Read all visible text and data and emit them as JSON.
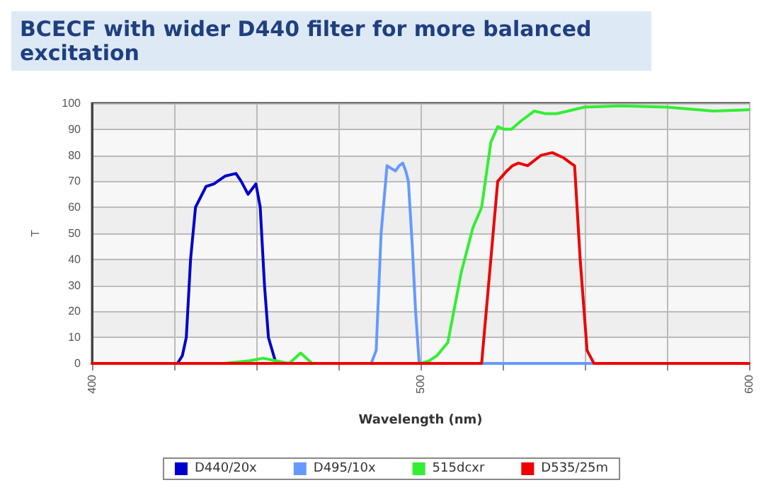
{
  "chart_data": {
    "type": "line",
    "title": "BCECF with wider D440 filter for more balanced excitation",
    "xlabel": "Wavelength (nm)",
    "ylabel": "T",
    "xlim": [
      400,
      600
    ],
    "ylim": [
      0,
      100
    ],
    "xticks": [
      400,
      {
        "value": 425,
        "label": null
      },
      {
        "value": 450,
        "label": null
      },
      {
        "value": 475,
        "label": null
      },
      500,
      {
        "value": 525,
        "label": null
      },
      {
        "value": 550,
        "label": null
      },
      {
        "value": 575,
        "label": null
      },
      600
    ],
    "yticks": [
      0,
      10,
      20,
      30,
      40,
      50,
      60,
      70,
      80,
      90,
      100
    ],
    "grid": true,
    "legend": "bottom",
    "marker": "none",
    "line_style": "solid",
    "series": [
      {
        "name": "D440/20x",
        "color": "#0000cc",
        "x": [
          426,
          427.5,
          428.7,
          430,
          431.5,
          434.7,
          437.1,
          440.5,
          443.8,
          445.4,
          447.5,
          449.9,
          451.2,
          452.5,
          453.7,
          456
        ],
        "values": [
          0,
          3,
          10,
          40,
          60,
          68,
          69,
          72,
          73,
          70,
          65,
          69,
          60,
          30,
          10,
          0
        ]
      },
      {
        "name": "D495/10x",
        "color": "#6699ff",
        "x": [
          400,
          485,
          486.5,
          488,
          489.8,
          491,
          492.4,
          493.5,
          494.6,
          495.5,
          496.3,
          497.5,
          498.5,
          499.6,
          600
        ],
        "values": [
          0,
          0,
          5,
          50,
          76,
          75,
          74,
          76,
          77,
          74,
          70,
          45,
          20,
          0,
          0
        ]
      },
      {
        "name": "515dcxr",
        "color": "#33ee33",
        "x": [
          400,
          440,
          448,
          452,
          456,
          460,
          463.5,
          467,
          472,
          500,
          502.6,
          505,
          508.3,
          512.4,
          515.9,
          518.6,
          521.4,
          523.5,
          525.5,
          527.7,
          530.4,
          534.6,
          538,
          541.5,
          549.9,
          561,
          574.9,
          589,
          600
        ],
        "values": [
          0,
          0,
          1,
          2,
          1,
          0,
          4,
          0,
          0,
          0,
          1,
          3,
          8,
          35,
          52,
          60,
          85,
          91,
          90,
          90,
          93,
          97,
          96,
          96,
          98.5,
          99,
          98.5,
          97,
          97.5
        ]
      },
      {
        "name": "D535/25m",
        "color": "#ee0000",
        "x": [
          400,
          518.6,
          520.7,
          523.5,
          526.3,
          528,
          529.8,
          532.6,
          536.7,
          540.1,
          543.6,
          545.7,
          546.9,
          548.6,
          550.7,
          552.8,
          600
        ],
        "values": [
          0,
          0,
          30,
          70,
          74,
          76,
          77,
          76,
          80,
          81,
          79,
          77,
          76,
          40,
          5,
          0,
          0
        ]
      }
    ]
  }
}
